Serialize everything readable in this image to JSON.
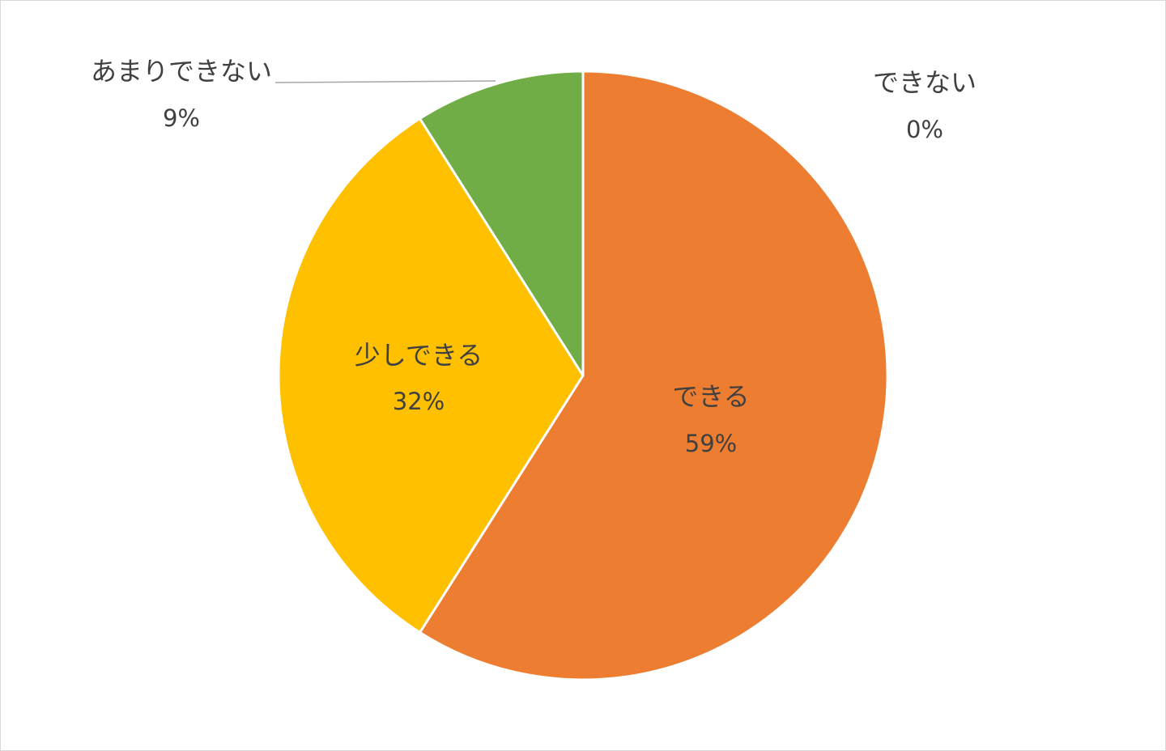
{
  "chart_data": {
    "type": "pie",
    "title": "",
    "start_angle_deg": 0,
    "direction": "clockwise",
    "slices": [
      {
        "label": "できる",
        "value": 59,
        "value_label": "59%",
        "color": "#ED7D31"
      },
      {
        "label": "少しできる",
        "value": 32,
        "value_label": "32%",
        "color": "#FFC000"
      },
      {
        "label": "あまりできない",
        "value": 9,
        "value_label": "9%",
        "color": "#70AD47"
      },
      {
        "label": "できない",
        "value": 0,
        "value_label": "0%",
        "color": "#A5A5A5"
      }
    ],
    "slice_border_color": "#FFFFFF",
    "leader_line_color": "#A6A6A6",
    "legend": "none"
  }
}
